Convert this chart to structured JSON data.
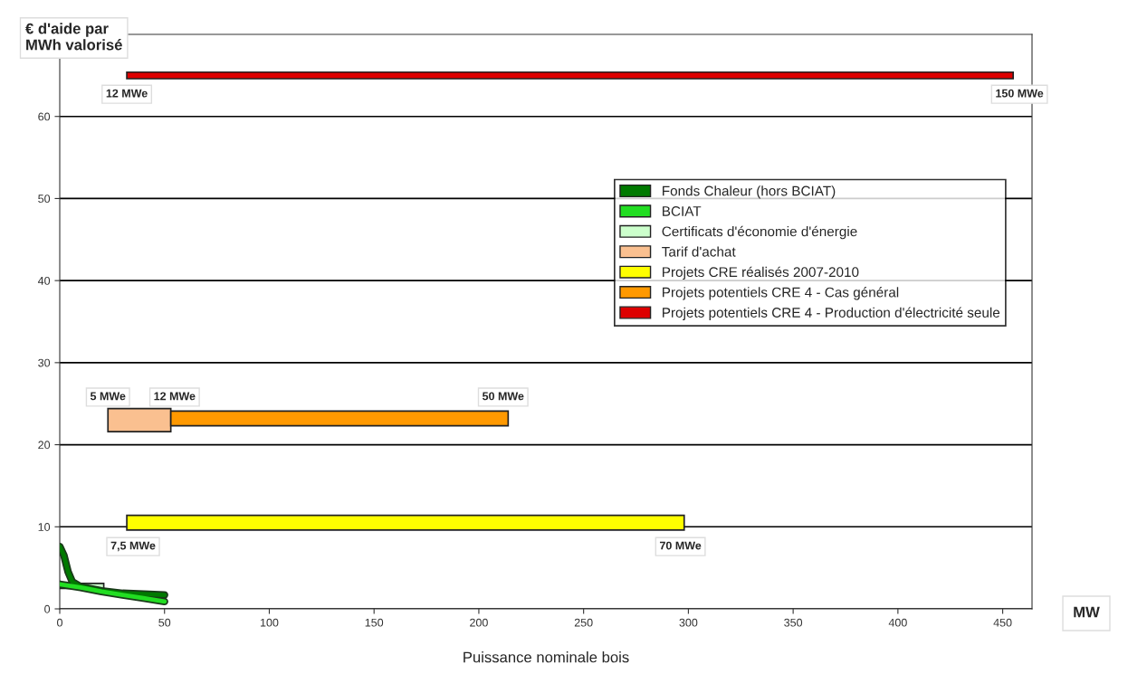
{
  "chart_data": {
    "type": "bar",
    "orientation": "horizontal",
    "ylabel": "€ d'aide par\nMWh valorisé",
    "xlabel": "Puissance nominale bois",
    "xlim": [
      0,
      464
    ],
    "xticks": [
      0,
      50,
      100,
      150,
      200,
      250,
      300,
      350,
      400,
      450
    ],
    "ylim": [
      0,
      70
    ],
    "yticks": [
      0,
      10,
      20,
      30,
      40,
      50,
      60
    ],
    "grid": "y",
    "legend": "right",
    "series": [
      {
        "name": "Fonds Chaleur (hors BCIAT)",
        "type": "line",
        "color": "#007a00",
        "x": [
          7.6,
          6.5,
          4.5,
          3.3,
          2.7,
          2.2,
          1.9,
          1.8,
          1.7
        ],
        "values": [
          0,
          2,
          4,
          6,
          10,
          20,
          30,
          40,
          50
        ]
      },
      {
        "name": "BCIAT",
        "type": "line",
        "color": "#22dd22",
        "x": [
          3.0,
          2.6,
          2.1,
          1.7,
          1.3,
          0.9
        ],
        "values": [
          0,
          10,
          20,
          30,
          40,
          50
        ]
      },
      {
        "name": "Certificats d'économie d'énergie",
        "color": "#ccffcc",
        "x": [
          2.8
        ],
        "base": [
          0
        ],
        "values": [
          21
        ]
      },
      {
        "name": "Tarif d'achat",
        "color": "#fac090",
        "x": [
          23
        ],
        "base": [
          23
        ],
        "values": [
          30
        ]
      },
      {
        "name": "Projets CRE réalisés 2007-2010",
        "color": "#ffff00",
        "x": [
          10.5
        ],
        "base": [
          32
        ],
        "values": [
          266
        ]
      },
      {
        "name": "Projets potentiels CRE 4 - Cas général",
        "color": "#ff9900",
        "x": [
          23.2
        ],
        "base": [
          53
        ],
        "values": [
          161
        ]
      },
      {
        "name": "Projets potentiels CRE 4 - Production d'électricité seule",
        "color": "#dd0000",
        "x": [
          65
        ],
        "base": [
          32
        ],
        "values": [
          423
        ]
      }
    ],
    "annotations": [
      {
        "text": "12 MWe",
        "x": 32,
        "y": 65
      },
      {
        "text": "150 MWe",
        "x": 455,
        "y": 65
      },
      {
        "text": "5 MWe",
        "x": 23,
        "y": 23.2
      },
      {
        "text": "12 MWe",
        "x": 53,
        "y": 23.2
      },
      {
        "text": "50 MWe",
        "x": 214,
        "y": 23.2
      },
      {
        "text": "7,5 MWe",
        "x": 32,
        "y": 10.5
      },
      {
        "text": "70 MWe",
        "x": 298,
        "y": 10.5
      },
      "MW"
    ]
  }
}
